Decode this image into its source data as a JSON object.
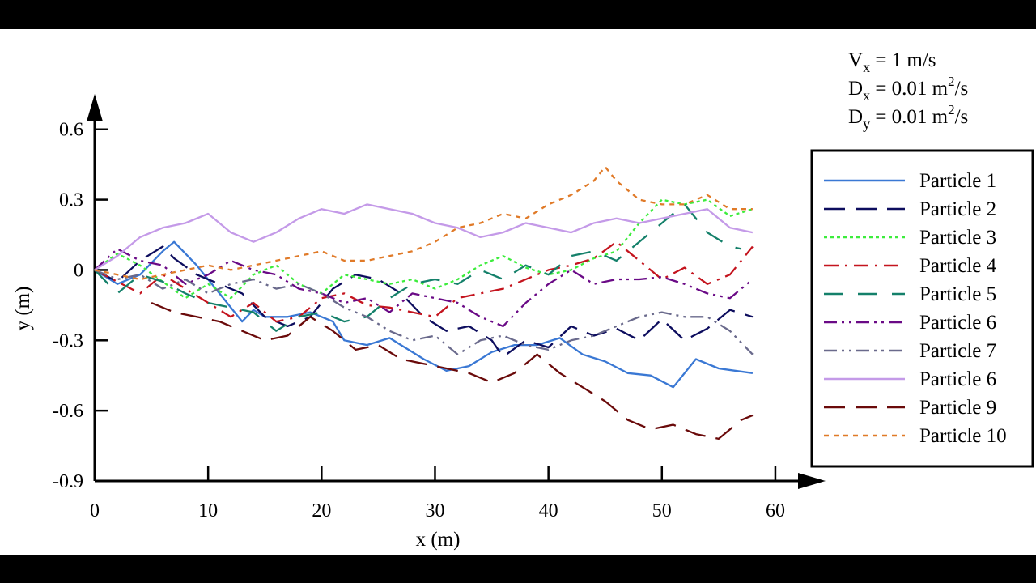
{
  "chart_data": {
    "type": "line",
    "xlabel": "x (m)",
    "ylabel": "y (m)",
    "xlim": [
      0,
      63
    ],
    "ylim": [
      -0.9,
      0.72
    ],
    "xticks": [
      0,
      10,
      20,
      30,
      40,
      50,
      60
    ],
    "yticks": [
      -0.9,
      -0.6,
      -0.3,
      0,
      0.3,
      0.6
    ],
    "ytick_labels": [
      "-0.9",
      "-0.6",
      "-0.3",
      "0",
      "0.3",
      "0.6"
    ],
    "params": [
      {
        "var": "V",
        "sub": "x",
        "value": " = 1 m/s",
        "sup": "",
        "tail": ""
      },
      {
        "var": "D",
        "sub": "x",
        "value": " = 0.01 m",
        "sup": "2",
        "tail": "/s"
      },
      {
        "var": "D",
        "sub": "y",
        "value": " = 0.01 m",
        "sup": "2",
        "tail": "/s"
      }
    ],
    "legend_position": "right",
    "series": [
      {
        "name": "Particle 1",
        "color": "#3a78d4",
        "dash": "solid",
        "x": [
          0,
          2,
          4,
          6,
          7,
          9,
          11,
          13,
          14,
          15,
          17,
          19,
          21,
          22,
          24,
          26,
          27,
          29,
          31,
          33,
          35,
          37,
          39,
          41,
          43,
          45,
          47,
          49,
          51,
          53,
          55,
          58
        ],
        "y": [
          0,
          -0.06,
          -0.02,
          0.08,
          0.12,
          0.02,
          -0.1,
          -0.22,
          -0.17,
          -0.2,
          -0.2,
          -0.18,
          -0.22,
          -0.3,
          -0.32,
          -0.29,
          -0.32,
          -0.38,
          -0.43,
          -0.41,
          -0.35,
          -0.32,
          -0.32,
          -0.29,
          -0.36,
          -0.39,
          -0.44,
          -0.45,
          -0.5,
          -0.38,
          -0.42,
          -0.44
        ]
      },
      {
        "name": "Particle 2",
        "color": "#0d0d5e",
        "dash": "long",
        "x": [
          0,
          2,
          4,
          6,
          7,
          9,
          11,
          13,
          15,
          17,
          19,
          21,
          23,
          25,
          27,
          29,
          31,
          33,
          35,
          36,
          38,
          40,
          42,
          44,
          46,
          48,
          50,
          52,
          54,
          56,
          58
        ],
        "y": [
          0,
          -0.05,
          0.04,
          0.1,
          0.05,
          -0.02,
          -0.06,
          -0.1,
          -0.2,
          -0.24,
          -0.2,
          -0.08,
          -0.02,
          -0.04,
          -0.1,
          -0.2,
          -0.26,
          -0.24,
          -0.3,
          -0.37,
          -0.3,
          -0.33,
          -0.24,
          -0.28,
          -0.25,
          -0.3,
          -0.21,
          -0.3,
          -0.25,
          -0.17,
          -0.2
        ]
      },
      {
        "name": "Particle 3",
        "color": "#3cec3c",
        "dash": "dot",
        "x": [
          0,
          2,
          4,
          6,
          8,
          10,
          12,
          14,
          16,
          18,
          20,
          22,
          24,
          26,
          28,
          30,
          32,
          34,
          36,
          38,
          40,
          42,
          44,
          46,
          48,
          50,
          52,
          54,
          56,
          58
        ],
        "y": [
          0,
          0.07,
          0.02,
          -0.05,
          -0.12,
          -0.06,
          -0.12,
          -0.02,
          0.02,
          -0.06,
          -0.1,
          -0.02,
          -0.04,
          -0.06,
          -0.04,
          -0.08,
          -0.04,
          0.02,
          0.06,
          0.01,
          -0.02,
          0.0,
          0.05,
          0.08,
          0.2,
          0.3,
          0.28,
          0.3,
          0.23,
          0.26
        ]
      },
      {
        "name": "Particle 4",
        "color": "#c4141e",
        "dash": "dashdot",
        "x": [
          0,
          2,
          4,
          6,
          8,
          10,
          12,
          14,
          16,
          18,
          20,
          22,
          24,
          26,
          28,
          30,
          32,
          34,
          36,
          38,
          40,
          42,
          44,
          46,
          48,
          50,
          52,
          54,
          56,
          58
        ],
        "y": [
          0,
          -0.05,
          -0.1,
          -0.02,
          -0.08,
          -0.14,
          -0.2,
          -0.14,
          -0.22,
          -0.2,
          -0.12,
          -0.1,
          -0.15,
          -0.16,
          -0.18,
          -0.2,
          -0.12,
          -0.1,
          -0.08,
          -0.04,
          0.0,
          0.02,
          0.05,
          0.12,
          0.04,
          -0.04,
          0.01,
          -0.06,
          -0.02,
          0.1
        ]
      },
      {
        "name": "Particle 5",
        "color": "#14806a",
        "dash": "dashgap",
        "x": [
          0,
          2,
          4,
          6,
          8,
          10,
          12,
          14,
          16,
          18,
          20,
          22,
          24,
          26,
          28,
          30,
          32,
          34,
          36,
          38,
          40,
          42,
          44,
          46,
          48,
          50,
          52,
          54,
          56,
          57
        ],
        "y": [
          0,
          -0.1,
          -0.02,
          -0.05,
          -0.1,
          -0.14,
          -0.16,
          -0.18,
          -0.26,
          -0.2,
          -0.18,
          -0.22,
          -0.2,
          -0.12,
          -0.06,
          -0.04,
          -0.06,
          0.0,
          -0.04,
          0.02,
          -0.02,
          0.06,
          0.08,
          0.04,
          0.12,
          0.2,
          0.28,
          0.16,
          0.1,
          0.09
        ]
      },
      {
        "name": "Particle 6",
        "color": "#6a0a86",
        "dash": "dashdotdot",
        "x": [
          0,
          2,
          4,
          6,
          8,
          10,
          12,
          14,
          16,
          18,
          20,
          22,
          24,
          26,
          28,
          30,
          32,
          34,
          36,
          38,
          40,
          42,
          44,
          46,
          48,
          50,
          52,
          54,
          56,
          58
        ],
        "y": [
          0,
          0.09,
          0.04,
          0.02,
          -0.06,
          -0.02,
          0.04,
          0.0,
          -0.02,
          -0.08,
          -0.1,
          -0.14,
          -0.12,
          -0.18,
          -0.1,
          -0.12,
          -0.14,
          -0.2,
          -0.24,
          -0.14,
          -0.06,
          0.0,
          -0.06,
          -0.04,
          -0.04,
          -0.03,
          -0.06,
          -0.1,
          -0.12,
          -0.04
        ]
      },
      {
        "name": "Particle 7",
        "color": "#6a6a8c",
        "dash": "dashdotdot",
        "x": [
          0,
          2,
          4,
          6,
          8,
          10,
          12,
          14,
          16,
          18,
          20,
          22,
          24,
          26,
          28,
          30,
          32,
          34,
          36,
          38,
          40,
          42,
          44,
          46,
          48,
          50,
          52,
          54,
          56,
          58
        ],
        "y": [
          0,
          -0.04,
          -0.02,
          -0.08,
          -0.04,
          -0.1,
          -0.06,
          -0.04,
          -0.08,
          -0.06,
          -0.1,
          -0.16,
          -0.2,
          -0.26,
          -0.3,
          -0.28,
          -0.36,
          -0.3,
          -0.28,
          -0.32,
          -0.34,
          -0.3,
          -0.28,
          -0.24,
          -0.2,
          -0.18,
          -0.2,
          -0.2,
          -0.26,
          -0.36
        ]
      },
      {
        "name": "Particle 6",
        "color": "#c49ae8",
        "dash": "solid",
        "x": [
          0,
          2,
          4,
          6,
          8,
          10,
          12,
          14,
          16,
          18,
          20,
          22,
          24,
          26,
          28,
          30,
          32,
          34,
          36,
          38,
          40,
          42,
          44,
          46,
          48,
          50,
          52,
          54,
          56,
          58
        ],
        "y": [
          0,
          0.06,
          0.14,
          0.18,
          0.2,
          0.24,
          0.16,
          0.12,
          0.16,
          0.22,
          0.26,
          0.24,
          0.28,
          0.26,
          0.24,
          0.2,
          0.18,
          0.14,
          0.16,
          0.2,
          0.18,
          0.16,
          0.2,
          0.22,
          0.2,
          0.22,
          0.24,
          0.26,
          0.18,
          0.16
        ]
      },
      {
        "name": "Particle 9",
        "color": "#6a0a0a",
        "dash": "long",
        "x": [
          5,
          7,
          9,
          11,
          13,
          15,
          17,
          19,
          21,
          23,
          25,
          27,
          29,
          31,
          33,
          35,
          37,
          39,
          41,
          43,
          45,
          47,
          49,
          51,
          53,
          55,
          57,
          58
        ],
        "y": [
          -0.14,
          -0.18,
          -0.2,
          -0.22,
          -0.26,
          -0.3,
          -0.28,
          -0.2,
          -0.26,
          -0.34,
          -0.32,
          -0.38,
          -0.4,
          -0.42,
          -0.44,
          -0.48,
          -0.44,
          -0.36,
          -0.44,
          -0.5,
          -0.56,
          -0.64,
          -0.68,
          -0.66,
          -0.7,
          -0.72,
          -0.64,
          -0.62
        ]
      },
      {
        "name": "Particle 10",
        "color": "#e07a28",
        "dash": "shortdash",
        "x": [
          0,
          2,
          4,
          6,
          8,
          10,
          12,
          14,
          16,
          18,
          20,
          22,
          24,
          26,
          28,
          30,
          32,
          34,
          36,
          38,
          40,
          42,
          44,
          45,
          46,
          48,
          50,
          52,
          54,
          56,
          58
        ],
        "y": [
          0,
          -0.02,
          -0.04,
          -0.02,
          0.0,
          0.02,
          0.0,
          0.02,
          0.04,
          0.06,
          0.08,
          0.04,
          0.04,
          0.06,
          0.08,
          0.12,
          0.18,
          0.2,
          0.24,
          0.22,
          0.28,
          0.32,
          0.38,
          0.44,
          0.38,
          0.3,
          0.28,
          0.28,
          0.32,
          0.26,
          0.26
        ]
      }
    ]
  }
}
